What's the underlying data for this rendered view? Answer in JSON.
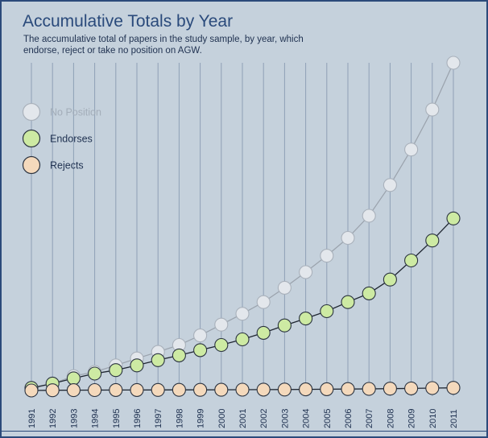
{
  "header": {
    "title": "Accumulative Totals by Year",
    "subtitle": "The accumulative total of papers in the study sample, by year, which endorse, reject or take no position on AGW."
  },
  "colors": {
    "background": "#c5d1dc",
    "gridline": "#8fa0b6",
    "no_position_fill": "#e3e7ec",
    "no_position_stroke": "#a9b1bb",
    "no_position_line": "#9aa2ac",
    "endorses_fill": "#cdeaa3",
    "endorses_stroke": "#2b3340",
    "endorses_line": "#1e2530",
    "rejects_fill": "#f4d9bc",
    "rejects_stroke": "#2b3340",
    "rejects_line": "#1e2530",
    "title": "#2a4a7b"
  },
  "chart_data": {
    "type": "line",
    "title": "Accumulative Totals by Year",
    "subtitle": "The accumulative total of papers in the study sample, by year, which endorse, reject or take no position on AGW.",
    "xlabel": "",
    "ylabel": "",
    "ylim": [
      0,
      8000
    ],
    "grid": true,
    "legend_position": "top-left",
    "categories": [
      "1991",
      "1992",
      "1993",
      "1994",
      "1995",
      "1996",
      "1997",
      "1998",
      "1999",
      "2000",
      "2001",
      "2002",
      "2003",
      "2004",
      "2005",
      "2006",
      "2007",
      "2008",
      "2009",
      "2010",
      "2011"
    ],
    "series": [
      {
        "name": "No Position",
        "key": "no_position",
        "legend_muted": true,
        "values": [
          40,
          160,
          330,
          430,
          580,
          740,
          890,
          1050,
          1270,
          1520,
          1770,
          2040,
          2370,
          2730,
          3110,
          3520,
          4030,
          4740,
          5560,
          6480,
          7560
        ]
      },
      {
        "name": "Endorses",
        "key": "endorses",
        "legend_muted": false,
        "values": [
          60,
          160,
          280,
          390,
          470,
          580,
          700,
          810,
          930,
          1050,
          1180,
          1330,
          1500,
          1660,
          1830,
          2040,
          2240,
          2560,
          3000,
          3460,
          3970
        ]
      },
      {
        "name": "Rejects",
        "key": "rejects",
        "legend_muted": false,
        "values": [
          0,
          5,
          8,
          10,
          11,
          12,
          13,
          14,
          15,
          17,
          18,
          20,
          23,
          26,
          30,
          34,
          38,
          42,
          48,
          55,
          62
        ]
      }
    ]
  }
}
